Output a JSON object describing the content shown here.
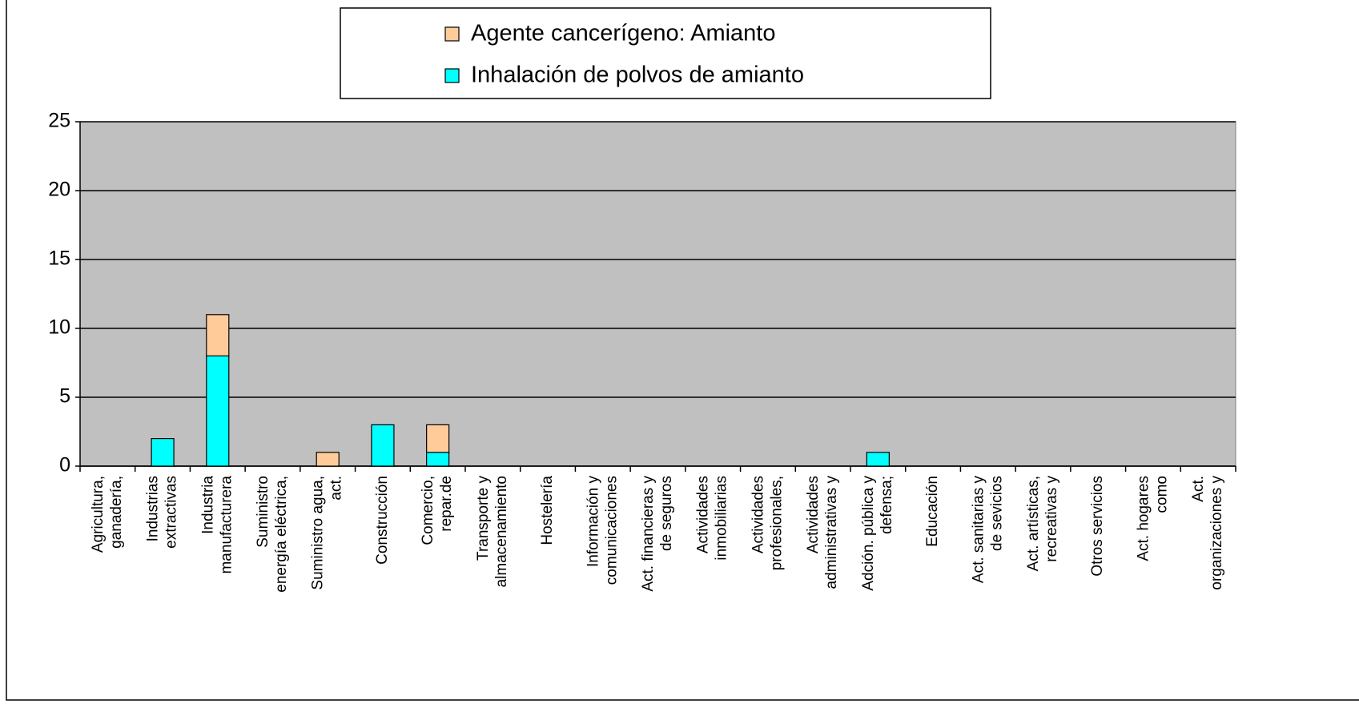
{
  "chart_data": {
    "type": "stacked_bar",
    "categories": [
      "Agricultura,\nganadería,",
      "Industrias\nextractivas",
      "Industria\nmanufacturera",
      "Suministro\nenergía eléctrica,",
      "Suministro agua,\nact.",
      "Construcción",
      "Comercio,\nrepar.de",
      "Transporte y\nalmacenamiento",
      "Hostelería",
      "Información y\ncomunicaciones",
      "Act. financieras y\nde seguros",
      "Actividades\ninmobiliarias",
      "Actividades\nprofesionales,",
      "Actividades\nadministrativas y",
      "Adción. pública y\ndefensa;",
      "Educación",
      "Act. sanitarias y\nde sevicios",
      "Act. artísticas,\nrecreativas y",
      "Otros servicios",
      "Act. hogares\ncomo",
      "Act.\norganizaciones y"
    ],
    "series": [
      {
        "name": "Agente cancerígeno: Amianto",
        "color": "#ffcc99",
        "values": [
          0,
          0,
          3,
          0,
          1,
          0,
          2,
          0,
          0,
          0,
          0,
          0,
          0,
          0,
          0,
          0,
          0,
          0,
          0,
          0,
          0
        ]
      },
      {
        "name": "Inhalación de polvos de amianto",
        "color": "#00ffff",
        "values": [
          0,
          2,
          8,
          0,
          0,
          3,
          1,
          0,
          0,
          0,
          0,
          0,
          0,
          0,
          1,
          0,
          0,
          0,
          0,
          0,
          0
        ]
      }
    ],
    "ylim": [
      0,
      25
    ],
    "yticks": [
      0,
      5,
      10,
      15,
      20,
      25
    ],
    "grid": true,
    "plot_background": "#c0c0c0"
  }
}
